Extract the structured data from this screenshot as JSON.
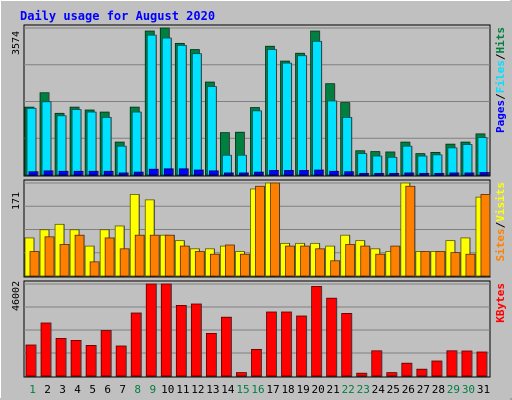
{
  "chart_data": {
    "type": "bar",
    "title": "Daily usage for August 2020",
    "colors": {
      "background": "#c0c0c0",
      "frame": "#ffffff",
      "title": "#0000ff",
      "hits": "#008040",
      "files": "#00e0ff",
      "pages": "#0000ff",
      "visits": "#ffff00",
      "sites": "#ff8000",
      "kbytes": "#ff0000",
      "weekend_day": "#008040",
      "weekday": "#000000",
      "grid": "#808080"
    },
    "categories": [
      "1",
      "2",
      "3",
      "4",
      "5",
      "6",
      "7",
      "8",
      "9",
      "10",
      "11",
      "12",
      "13",
      "14",
      "15",
      "16",
      "17",
      "18",
      "19",
      "20",
      "21",
      "22",
      "23",
      "24",
      "25",
      "26",
      "27",
      "28",
      "29",
      "30",
      "31"
    ],
    "weekend_days": [
      1,
      8,
      9,
      15,
      16,
      22,
      23,
      29,
      30
    ],
    "panels": [
      {
        "id": "traffic",
        "max_label": "3574",
        "ylim": [
          0,
          3574
        ],
        "legend": [
          {
            "text": "Pages",
            "color": "#0000ff"
          },
          {
            "text": "Files",
            "color": "#00e0ff"
          },
          {
            "text": "Hits",
            "color": "#008040"
          }
        ],
        "sep": "/",
        "series": [
          {
            "name": "Hits",
            "color": "#008040",
            "values": [
              1650,
              2000,
              1500,
              1650,
              1580,
              1530,
              800,
              1650,
              3500,
              3574,
              3200,
              3050,
              2260,
              1030,
              1040,
              1640,
              3130,
              2770,
              2960,
              3500,
              2220,
              1760,
              590,
              570,
              560,
              800,
              520,
              550,
              750,
              800,
              1000
            ]
          },
          {
            "name": "Files",
            "color": "#00e0ff",
            "values": [
              1620,
              1780,
              1440,
              1590,
              1530,
              1400,
              700,
              1530,
              3400,
              3330,
              3150,
              2950,
              2150,
              480,
              480,
              1560,
              3050,
              2720,
              2900,
              3250,
              1800,
              1400,
              520,
              460,
              430,
              700,
              460,
              490,
              660,
              740,
              910
            ]
          },
          {
            "name": "Pages",
            "color": "#0000ff",
            "values": [
              80,
              100,
              90,
              90,
              90,
              90,
              50,
              70,
              140,
              150,
              150,
              120,
              100,
              50,
              50,
              70,
              110,
              110,
              110,
              120,
              90,
              80,
              40,
              40,
              40,
              50,
              40,
              40,
              50,
              50,
              60
            ]
          }
        ]
      },
      {
        "id": "visitors",
        "max_label": "171",
        "ylim": [
          0,
          171
        ],
        "legend": [
          {
            "text": "Sites",
            "color": "#ff8000"
          },
          {
            "text": "Visits",
            "color": "#ffff00"
          }
        ],
        "sep": "/",
        "series": [
          {
            "name": "Visits",
            "color": "#ffff00",
            "values": [
              70,
              85,
              95,
              85,
              55,
              85,
              92,
              150,
              140,
              75,
              65,
              50,
              50,
              55,
              45,
              160,
              171,
              60,
              60,
              60,
              55,
              75,
              65,
              50,
              45,
              171,
              45,
              45,
              65,
              70,
              145
            ]
          },
          {
            "name": "Sites",
            "color": "#ff8000",
            "values": [
              45,
              72,
              58,
              75,
              26,
              70,
              50,
              75,
              75,
              75,
              55,
              45,
              40,
              57,
              40,
              165,
              171,
              55,
              55,
              50,
              28,
              58,
              55,
              40,
              55,
              165,
              45,
              45,
              43,
              40,
              150
            ]
          }
        ]
      },
      {
        "id": "kbytes",
        "max_label": "46002",
        "ylim": [
          0,
          46002
        ],
        "legend": [
          {
            "text": "KBytes",
            "color": "#ff0000"
          }
        ],
        "sep": "",
        "series": [
          {
            "name": "KBytes",
            "color": "#ff0000",
            "values": [
              15500,
              26500,
              18800,
              17800,
              15300,
              22700,
              15000,
              31500,
              46002,
              46002,
              35300,
              36000,
              21300,
              29400,
              1700,
              13300,
              32000,
              32000,
              30000,
              44800,
              38900,
              31300,
              1400,
              12600,
              1700,
              6400,
              3400,
              7500,
              12600,
              12500,
              12000
            ]
          }
        ]
      }
    ]
  }
}
